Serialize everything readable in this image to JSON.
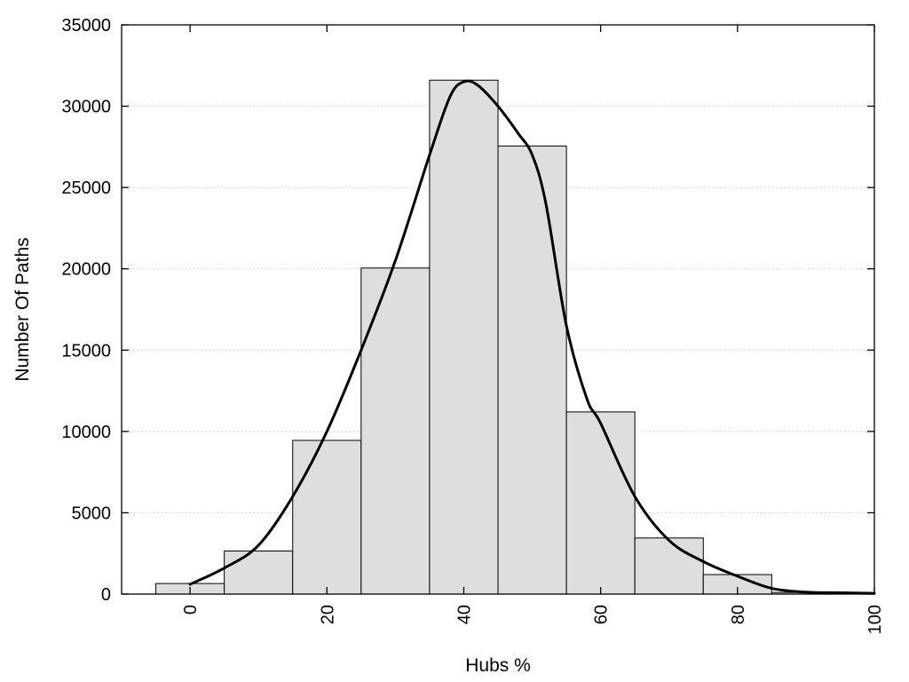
{
  "chart_data": {
    "type": "bar",
    "title": "",
    "xlabel": "Hubs %",
    "ylabel": "Number Of Paths",
    "xlim": [
      -10,
      100
    ],
    "ylim": [
      0,
      35000
    ],
    "x_ticks": [
      0,
      20,
      40,
      60,
      80,
      100
    ],
    "y_ticks": [
      0,
      5000,
      10000,
      15000,
      20000,
      25000,
      30000,
      35000
    ],
    "grid": "horizontal dotted",
    "bin_width": 10,
    "bin_centers": [
      0,
      10,
      20,
      30,
      40,
      50,
      60,
      70,
      80,
      90
    ],
    "values": [
      650,
      2650,
      9450,
      20050,
      31600,
      27550,
      11200,
      3450,
      1200,
      100
    ],
    "smooth_curve": {
      "x": [
        0,
        5,
        10,
        15,
        20,
        25,
        30,
        35,
        38,
        40,
        42,
        45,
        48,
        50,
        52,
        55,
        58,
        60,
        65,
        70,
        75,
        80,
        85,
        90,
        95,
        100
      ],
      "y": [
        600,
        1600,
        3000,
        6000,
        10000,
        15000,
        20500,
        27000,
        30600,
        31500,
        31300,
        30000,
        28300,
        27000,
        24000,
        16500,
        12000,
        10500,
        6000,
        3300,
        2000,
        1100,
        350,
        120,
        80,
        50
      ]
    },
    "colors": {
      "bar_fill": "#dedede",
      "bar_stroke": "#000000",
      "curve": "#000000",
      "grid": "#c8c8c8"
    }
  }
}
